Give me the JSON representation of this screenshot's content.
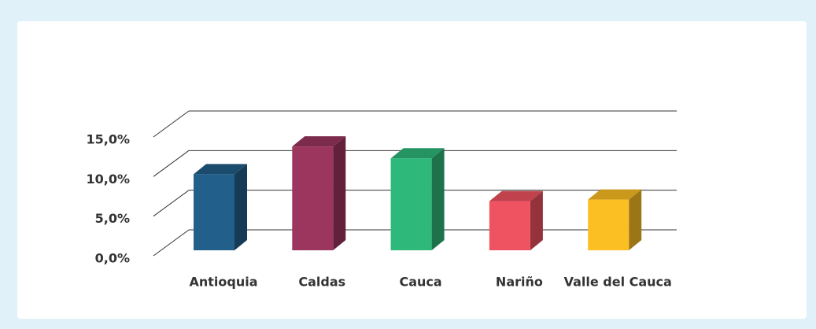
{
  "chart_data": {
    "type": "bar3d",
    "categories": [
      "Antioquia",
      "Caldas",
      "Cauca",
      "Nariño",
      "Valle del Cauca"
    ],
    "values": [
      9.6,
      13.1,
      11.6,
      6.2,
      6.4
    ],
    "colors": [
      "#225f8a",
      "#9c365f",
      "#2eb87a",
      "#ef5260",
      "#fcbf23"
    ],
    "ylim": [
      0,
      15
    ],
    "yticks": [
      {
        "value": 0,
        "label": "0,0%"
      },
      {
        "value": 5,
        "label": "5,0%"
      },
      {
        "value": 10,
        "label": "10,0%"
      },
      {
        "value": 15,
        "label": "15,0%"
      }
    ],
    "grid": true
  }
}
